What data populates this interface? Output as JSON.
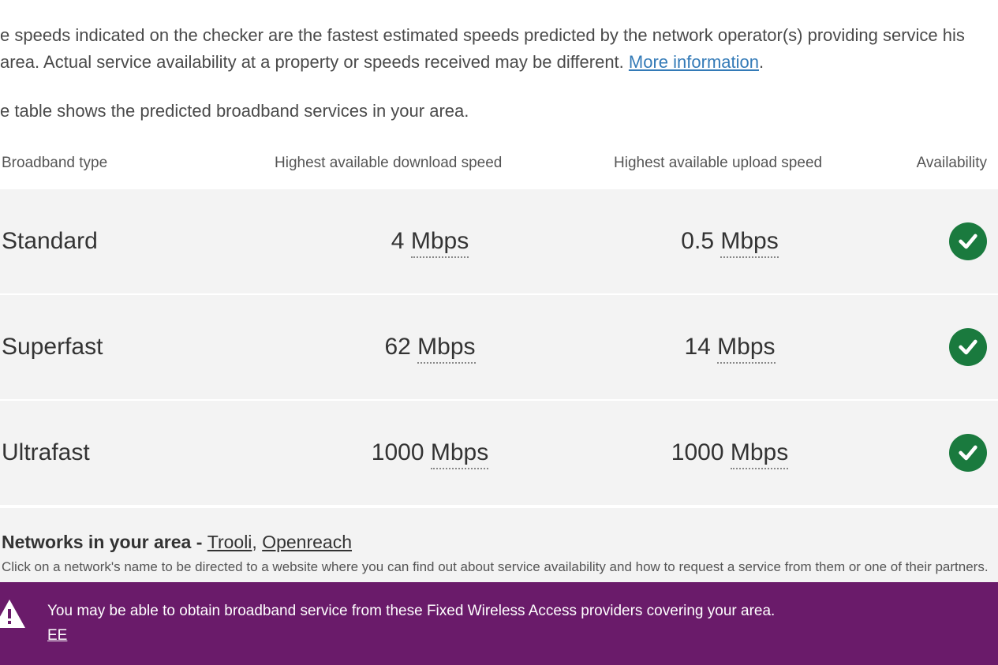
{
  "intro": {
    "para1_a": "e speeds indicated on the checker are the fastest estimated speeds predicted by the network operator(s) providing service his area. Actual service availability at a property or speeds received may be different. ",
    "more_info_label": "More information",
    "para1_b": ".",
    "para2": "e table shows the predicted broadband services in your area."
  },
  "table": {
    "headers": {
      "type": "Broadband type",
      "download": "Highest available download speed",
      "upload": "Highest available upload speed",
      "availability": "Availability"
    },
    "rows": [
      {
        "type": "Standard",
        "download_value": "4",
        "download_unit": "Mbps",
        "upload_value": "0.5",
        "upload_unit": "Mbps",
        "available": true
      },
      {
        "type": "Superfast",
        "download_value": "62",
        "download_unit": "Mbps",
        "upload_value": "14",
        "upload_unit": "Mbps",
        "available": true
      },
      {
        "type": "Ultrafast",
        "download_value": "1000",
        "download_unit": "Mbps",
        "upload_value": "1000",
        "upload_unit": "Mbps",
        "available": true
      }
    ]
  },
  "networks": {
    "label": "Networks in your area - ",
    "links": [
      "Trooli",
      "Openreach"
    ],
    "separator": ", ",
    "hint": "Click on a network's name to be directed to a website where you can find out about service availability and how to request a service from them or one of their partners."
  },
  "alert": {
    "message": "You may be able to obtain broadband service from these Fixed Wireless Access providers covering your area.",
    "providers": [
      "EE"
    ]
  },
  "colors": {
    "link": "#337ab7",
    "row_bg": "#f3f3f3",
    "badge": "#1a7a3e",
    "alert_bg": "#6a1b6a",
    "text": "#333333"
  }
}
